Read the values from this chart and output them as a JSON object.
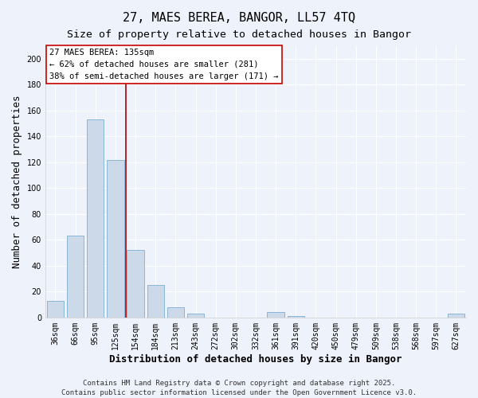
{
  "title": "27, MAES BEREA, BANGOR, LL57 4TQ",
  "subtitle": "Size of property relative to detached houses in Bangor",
  "xlabel": "Distribution of detached houses by size in Bangor",
  "ylabel": "Number of detached properties",
  "bar_labels": [
    "36sqm",
    "66sqm",
    "95sqm",
    "125sqm",
    "154sqm",
    "184sqm",
    "213sqm",
    "243sqm",
    "272sqm",
    "302sqm",
    "332sqm",
    "361sqm",
    "391sqm",
    "420sqm",
    "450sqm",
    "479sqm",
    "509sqm",
    "538sqm",
    "568sqm",
    "597sqm",
    "627sqm"
  ],
  "bar_values": [
    13,
    63,
    153,
    122,
    52,
    25,
    8,
    3,
    0,
    0,
    0,
    4,
    1,
    0,
    0,
    0,
    0,
    0,
    0,
    0,
    3
  ],
  "bar_color": "#ccd9e8",
  "bar_edge_color": "#7bafd4",
  "vline_x": 3.5,
  "vline_color": "#aa0000",
  "ylim": [
    0,
    210
  ],
  "yticks": [
    0,
    20,
    40,
    60,
    80,
    100,
    120,
    140,
    160,
    180,
    200
  ],
  "annotation_title": "27 MAES BEREA: 135sqm",
  "annotation_line1": "← 62% of detached houses are smaller (281)",
  "annotation_line2": "38% of semi-detached houses are larger (171) →",
  "footer1": "Contains HM Land Registry data © Crown copyright and database right 2025.",
  "footer2": "Contains public sector information licensed under the Open Government Licence v3.0.",
  "background_color": "#eef2fa",
  "grid_color": "#ffffff",
  "title_fontsize": 11,
  "subtitle_fontsize": 9.5,
  "axis_label_fontsize": 9,
  "tick_fontsize": 7,
  "annotation_fontsize": 7.5,
  "footer_fontsize": 6.5
}
